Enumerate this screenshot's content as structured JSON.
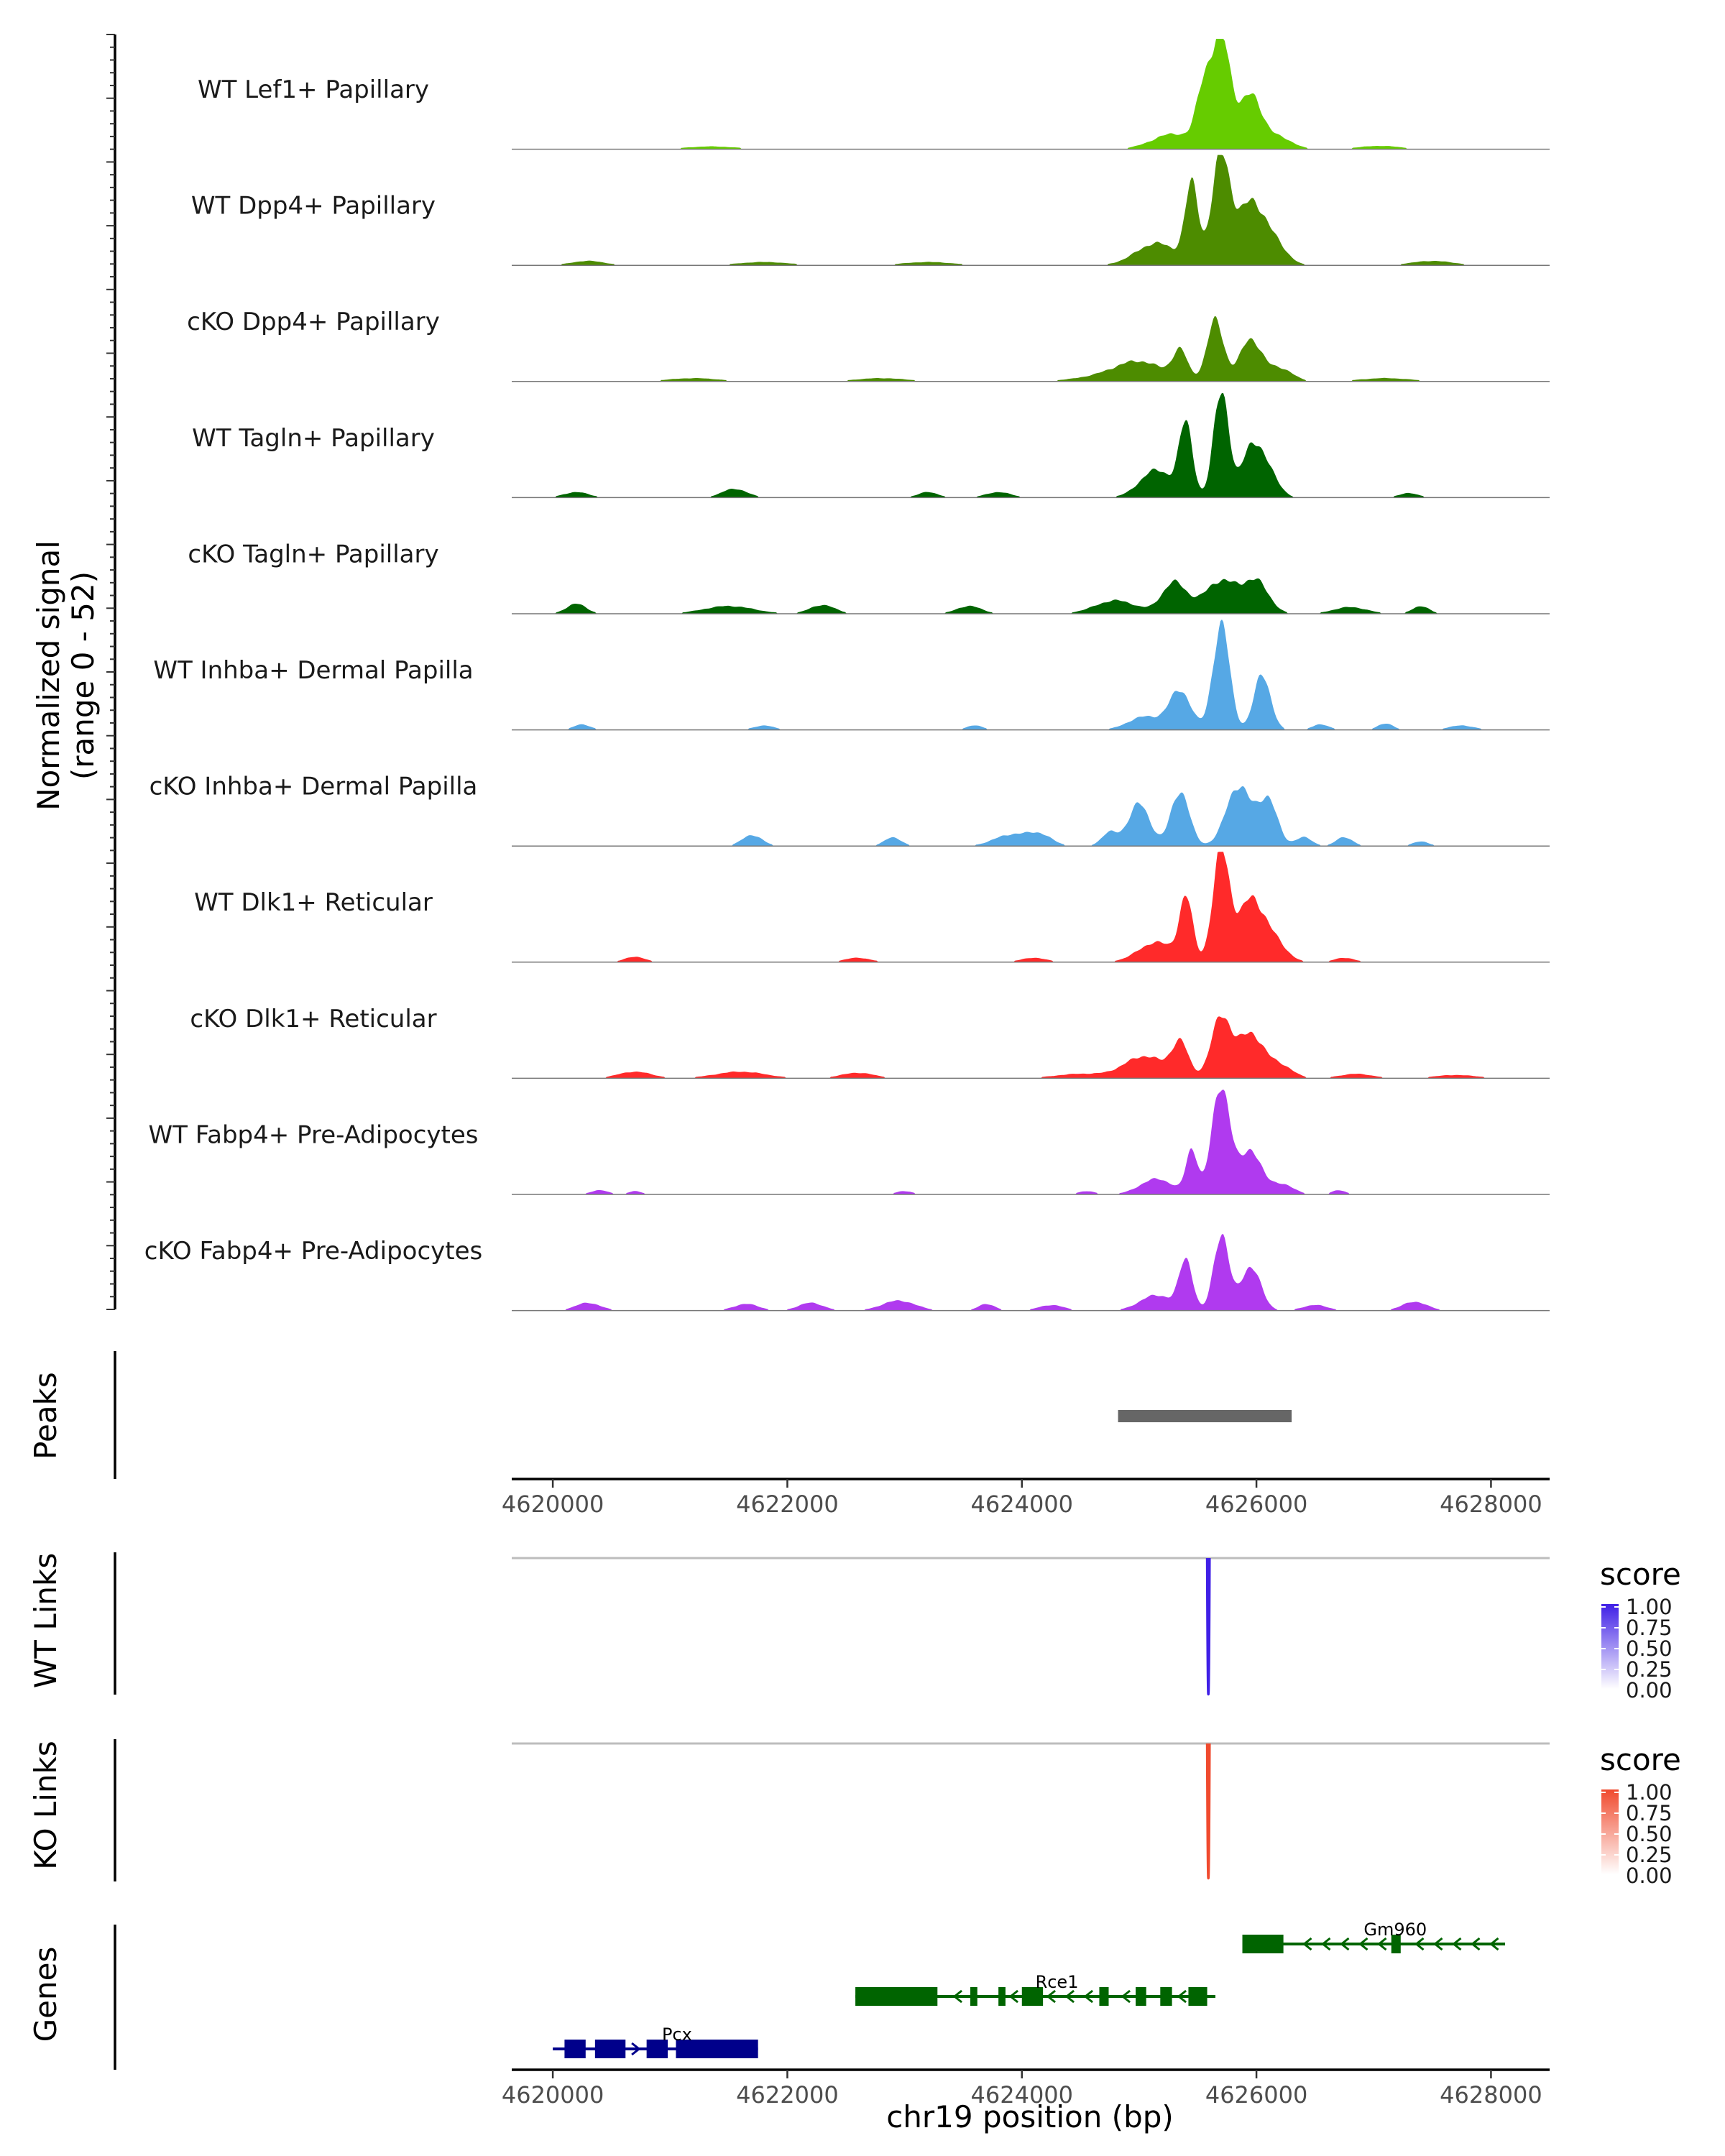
{
  "chart_data": {
    "type": "area",
    "chromosome": "chr19",
    "xlabel": "chr19 position (bp)",
    "x_range": [
      4619650,
      4628500
    ],
    "x_ticks": [
      "4620000",
      "4622000",
      "4624000",
      "4626000",
      "4628000"
    ],
    "coverage": {
      "ylabel_line1": "Normalized signal",
      "ylabel_line2": "(range 0 - 52)",
      "y_range": [
        0,
        52
      ],
      "tracks": [
        {
          "name": "WT Lef1+ Papillary",
          "color": "#66CC00",
          "peaks": [
            [
              4625550,
              0.48,
              90
            ],
            [
              4625700,
              1.0,
              110
            ],
            [
              4625950,
              0.48,
              140
            ],
            [
              4625300,
              0.14,
              260
            ],
            [
              4626200,
              0.1,
              160
            ],
            [
              4621350,
              0.025,
              300
            ],
            [
              4627050,
              0.03,
              250
            ]
          ]
        },
        {
          "name": "WT Dpp4+ Papillary",
          "color": "#4D8C00",
          "peaks": [
            [
              4625450,
              0.7,
              80
            ],
            [
              4625700,
              1.0,
              110
            ],
            [
              4625950,
              0.55,
              150
            ],
            [
              4625150,
              0.2,
              250
            ],
            [
              4626150,
              0.2,
              150
            ],
            [
              4620300,
              0.04,
              200
            ],
            [
              4621800,
              0.03,
              300
            ],
            [
              4623200,
              0.03,
              300
            ],
            [
              4627500,
              0.04,
              250
            ]
          ]
        },
        {
          "name": "cKO Dpp4+ Papillary",
          "color": "#4D8C00",
          "peaks": [
            [
              4625350,
              0.25,
              90
            ],
            [
              4625650,
              0.55,
              100
            ],
            [
              4625950,
              0.38,
              130
            ],
            [
              4625000,
              0.18,
              300
            ],
            [
              4626200,
              0.12,
              150
            ],
            [
              4621200,
              0.03,
              300
            ],
            [
              4622800,
              0.03,
              300
            ],
            [
              4624600,
              0.03,
              300
            ],
            [
              4627100,
              0.03,
              300
            ]
          ]
        },
        {
          "name": "WT Tagln+ Papillary",
          "color": "#006400",
          "peaks": [
            [
              4625400,
              0.65,
              80
            ],
            [
              4625700,
              1.0,
              90
            ],
            [
              4625950,
              0.45,
              110
            ],
            [
              4625150,
              0.25,
              200
            ],
            [
              4626100,
              0.25,
              120
            ],
            [
              4620200,
              0.05,
              150
            ],
            [
              4621550,
              0.08,
              150
            ],
            [
              4623200,
              0.05,
              120
            ],
            [
              4623800,
              0.05,
              150
            ],
            [
              4627300,
              0.04,
              120
            ]
          ]
        },
        {
          "name": "cKO Tagln+ Papillary",
          "color": "#006400",
          "peaks": [
            [
              4625300,
              0.28,
              150
            ],
            [
              4625700,
              0.3,
              200
            ],
            [
              4626000,
              0.28,
              150
            ],
            [
              4624800,
              0.12,
              250
            ],
            [
              4620200,
              0.09,
              120
            ],
            [
              4621500,
              0.07,
              300
            ],
            [
              4622300,
              0.08,
              150
            ],
            [
              4623550,
              0.07,
              150
            ],
            [
              4626800,
              0.06,
              200
            ],
            [
              4627400,
              0.07,
              100
            ]
          ]
        },
        {
          "name": "WT Inhba+ Dermal Papilla",
          "color": "#56A8E5",
          "peaks": [
            [
              4625700,
              0.96,
              100
            ],
            [
              4626050,
              0.5,
              100
            ],
            [
              4625350,
              0.35,
              130
            ],
            [
              4625050,
              0.12,
              200
            ],
            [
              4620250,
              0.05,
              100
            ],
            [
              4621800,
              0.04,
              120
            ],
            [
              4623600,
              0.04,
              100
            ],
            [
              4626550,
              0.05,
              100
            ],
            [
              4627100,
              0.06,
              90
            ],
            [
              4627750,
              0.04,
              150
            ]
          ]
        },
        {
          "name": "cKO Inhba+ Dermal Papilla",
          "color": "#56A8E5",
          "peaks": [
            [
              4625350,
              0.5,
              110
            ],
            [
              4625850,
              0.55,
              150
            ],
            [
              4626100,
              0.42,
              110
            ],
            [
              4625000,
              0.38,
              130
            ],
            [
              4624750,
              0.12,
              100
            ],
            [
              4621700,
              0.1,
              120
            ],
            [
              4622900,
              0.08,
              100
            ],
            [
              4623900,
              0.1,
              200
            ],
            [
              4624150,
              0.1,
              150
            ],
            [
              4626400,
              0.08,
              100
            ],
            [
              4626750,
              0.08,
              100
            ],
            [
              4627400,
              0.04,
              100
            ]
          ]
        },
        {
          "name": "WT Dlk1+ Reticular",
          "color": "#FF2A2A",
          "peaks": [
            [
              4625400,
              0.55,
              80
            ],
            [
              4625700,
              1.0,
              100
            ],
            [
              4625950,
              0.55,
              150
            ],
            [
              4625150,
              0.18,
              220
            ],
            [
              4626150,
              0.18,
              150
            ],
            [
              4620700,
              0.05,
              120
            ],
            [
              4622600,
              0.04,
              150
            ],
            [
              4624100,
              0.04,
              150
            ],
            [
              4626750,
              0.04,
              120
            ]
          ]
        },
        {
          "name": "cKO Dlk1+ Reticular",
          "color": "#FF2A2A",
          "peaks": [
            [
              4625350,
              0.3,
              100
            ],
            [
              4625700,
              0.55,
              120
            ],
            [
              4625950,
              0.4,
              150
            ],
            [
              4625050,
              0.2,
              250
            ],
            [
              4626200,
              0.12,
              150
            ],
            [
              4620700,
              0.06,
              200
            ],
            [
              4621600,
              0.06,
              300
            ],
            [
              4622600,
              0.05,
              200
            ],
            [
              4624500,
              0.04,
              300
            ],
            [
              4626850,
              0.04,
              200
            ],
            [
              4627700,
              0.03,
              250
            ]
          ]
        },
        {
          "name": "WT Fabp4+ Pre-Adipocytes",
          "color": "#B03AEF",
          "peaks": [
            [
              4625700,
              1.0,
              110
            ],
            [
              4625450,
              0.4,
              70
            ],
            [
              4625950,
              0.4,
              120
            ],
            [
              4625150,
              0.14,
              200
            ],
            [
              4626200,
              0.1,
              150
            ],
            [
              4620400,
              0.04,
              100
            ],
            [
              4620700,
              0.03,
              80
            ],
            [
              4623000,
              0.03,
              100
            ],
            [
              4624550,
              0.03,
              100
            ],
            [
              4626700,
              0.04,
              80
            ]
          ]
        },
        {
          "name": "cKO Fabp4+ Pre-Adipocytes",
          "color": "#B03AEF",
          "peaks": [
            [
              4625400,
              0.45,
              80
            ],
            [
              4625700,
              0.7,
              90
            ],
            [
              4625950,
              0.4,
              120
            ],
            [
              4625150,
              0.14,
              200
            ],
            [
              4620300,
              0.07,
              150
            ],
            [
              4621650,
              0.06,
              150
            ],
            [
              4622200,
              0.07,
              150
            ],
            [
              4622950,
              0.09,
              200
            ],
            [
              4623700,
              0.06,
              100
            ],
            [
              4624250,
              0.05,
              150
            ],
            [
              4626500,
              0.05,
              150
            ],
            [
              4627350,
              0.08,
              150
            ]
          ]
        }
      ]
    },
    "peaks_track": {
      "label": "Peaks",
      "intervals": [
        [
          4624820,
          4626300
        ]
      ],
      "color": "#666666"
    },
    "link_tracks": [
      {
        "label": "WT Links",
        "color": "#3F1FE6",
        "links": [
          [
            4625580,
            4625600,
            1.0
          ]
        ],
        "legend": {
          "title": "score",
          "ticks": [
            "1.00",
            "0.75",
            "0.50",
            "0.25",
            "0.00"
          ]
        }
      },
      {
        "label": "KO Links",
        "color": "#F04A2E",
        "links": [
          [
            4625580,
            4625600,
            1.0
          ]
        ],
        "legend": {
          "title": "score",
          "ticks": [
            "1.00",
            "0.75",
            "0.50",
            "0.25",
            "0.00"
          ]
        }
      }
    ],
    "genes_track": {
      "label": "Genes",
      "genes": [
        {
          "name": "Gm960",
          "strand": "-",
          "color": "#006400",
          "start": 4625880,
          "end": 4628120,
          "exons": [
            [
              4625880,
              4626230
            ],
            [
              4627150,
              4627230
            ]
          ]
        },
        {
          "name": "Rce1",
          "strand": "-",
          "color": "#006400",
          "start": 4622580,
          "end": 4625650,
          "exons": [
            [
              4622580,
              4623280
            ],
            [
              4623560,
              4623620
            ],
            [
              4623800,
              4623860
            ],
            [
              4624000,
              4624180
            ],
            [
              4624660,
              4624740
            ],
            [
              4624970,
              4625060
            ],
            [
              4625180,
              4625280
            ],
            [
              4625420,
              4625580
            ]
          ]
        },
        {
          "name": "Pcx",
          "strand": "+",
          "color": "#00008B",
          "start": 4620000,
          "end": 4621750,
          "exons": [
            [
              4620100,
              4620280
            ],
            [
              4620360,
              4620620
            ],
            [
              4620800,
              4620980
            ],
            [
              4621050,
              4621750
            ]
          ]
        }
      ]
    }
  }
}
